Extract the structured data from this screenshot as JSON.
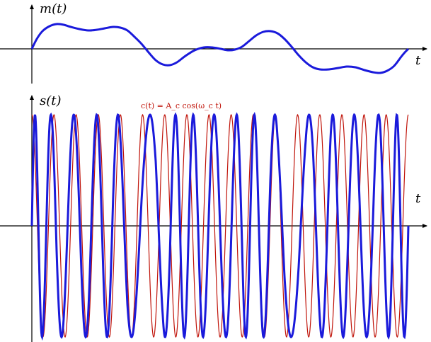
{
  "top_panel": {
    "ylabel": "m(t)",
    "xlabel": "t"
  },
  "bottom_panel": {
    "ylabel": "s(t)",
    "xlabel": "t",
    "carrier_label": "c(t) = A_c cos(ω_c t)"
  },
  "colors": {
    "message": "#1a1adb",
    "carrier": "#c0140a",
    "axis": "#000000"
  }
}
